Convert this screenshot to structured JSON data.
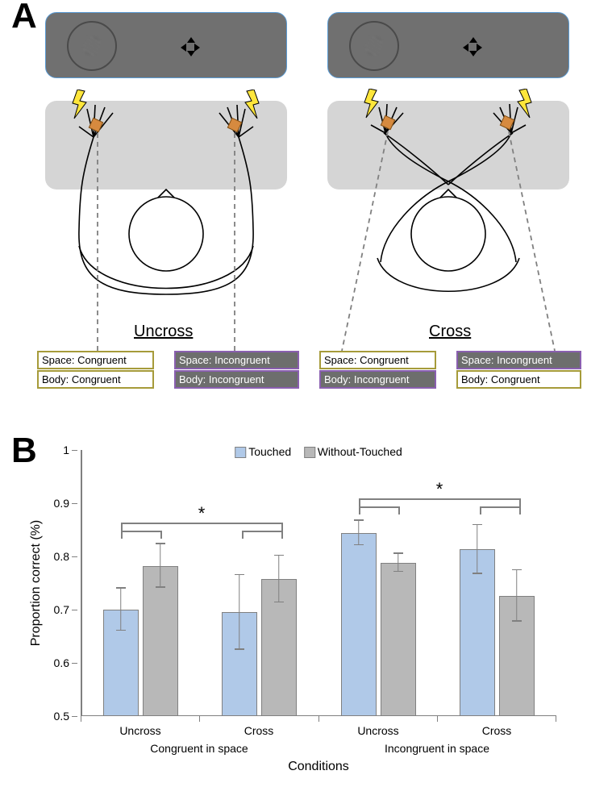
{
  "panelA": {
    "label": "A",
    "uncross_label": "Uncross",
    "cross_label": "Cross",
    "screen_color": "#707070",
    "plate_color": "#d5d5d5",
    "colors": {
      "khaki": "#a69b3a",
      "purple": "#8a5fb0",
      "purple_fill": "#6d6e6d"
    },
    "tags": {
      "uncross_left_space": "Space: Congruent",
      "uncross_left_body": "Body: Congruent",
      "uncross_right_space": "Space: Incongruent",
      "uncross_right_body": "Body: Incongruent",
      "cross_left_space": "Space: Congruent",
      "cross_left_body": "Body: Incongruent",
      "cross_right_space": "Space: Incongruent",
      "cross_right_body": "Body: Congruent"
    }
  },
  "panelB": {
    "label": "B",
    "type": "bar",
    "ylabel": "Proportion correct (%)",
    "xlabel": "Conditions",
    "ylim": [
      0.5,
      1.0
    ],
    "ytick_step": 0.1,
    "yticks": [
      "0.5",
      "0.6",
      "0.7",
      "0.8",
      "0.9",
      "1"
    ],
    "legend": {
      "touched": "Touched",
      "without": "Without-Touched"
    },
    "colors": {
      "touched": "#b0c9e8",
      "without": "#b8b8b8",
      "axis": "#808080",
      "border": "#808080"
    },
    "groups": [
      {
        "label": "Congruent in space",
        "sub": [
          "Uncross",
          "Cross"
        ]
      },
      {
        "label": "Incongruent in space",
        "sub": [
          "Uncross",
          "Cross"
        ]
      }
    ],
    "bars": [
      {
        "cond": "Congruent-Uncross",
        "series": "Touched",
        "value": 0.7,
        "err": 0.04
      },
      {
        "cond": "Congruent-Uncross",
        "series": "Without-Touched",
        "value": 0.782,
        "err": 0.041
      },
      {
        "cond": "Congruent-Cross",
        "series": "Touched",
        "value": 0.695,
        "err": 0.07
      },
      {
        "cond": "Congruent-Cross",
        "series": "Without-Touched",
        "value": 0.757,
        "err": 0.044
      },
      {
        "cond": "Incongruent-Uncross",
        "series": "Touched",
        "value": 0.844,
        "err": 0.023
      },
      {
        "cond": "Incongruent-Uncross",
        "series": "Without-Touched",
        "value": 0.788,
        "err": 0.017
      },
      {
        "cond": "Incongruent-Cross",
        "series": "Touched",
        "value": 0.813,
        "err": 0.046
      },
      {
        "cond": "Incongruent-Cross",
        "series": "Without-Touched",
        "value": 0.726,
        "err": 0.048
      }
    ],
    "significance_marker": "*",
    "font_size_axis": 14,
    "font_size_label": 16
  }
}
